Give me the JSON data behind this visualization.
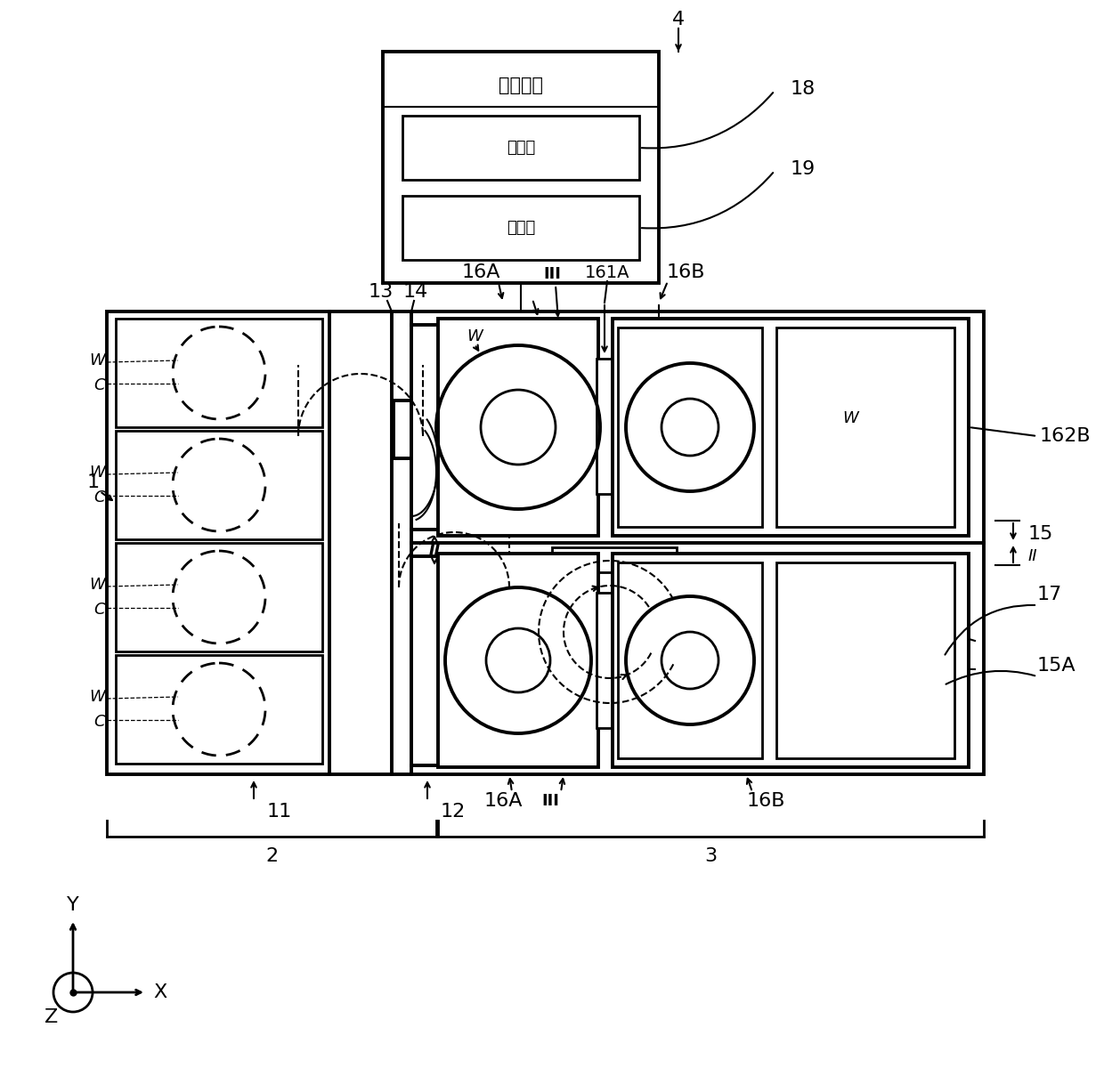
{
  "bg": "#ffffff",
  "label_main": "控制装置",
  "label_ctrl": "控制部",
  "label_stor": "存储部",
  "figsize": [
    12.4,
    12.18
  ],
  "dpi": 100,
  "xlim": [
    0,
    1240
  ],
  "ylim": [
    0,
    1218
  ]
}
